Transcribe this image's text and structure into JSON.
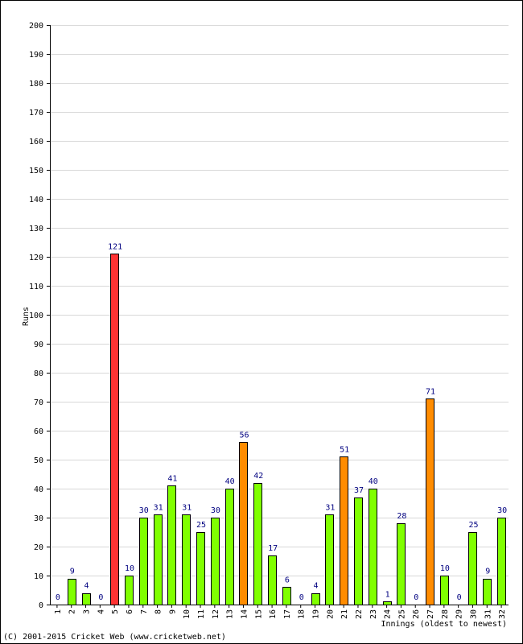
{
  "chart_data": {
    "type": "bar",
    "title": "",
    "xlabel": "Innings (oldest to newest)",
    "ylabel": "Runs",
    "ylim": [
      0,
      200
    ],
    "yticks": [
      0,
      10,
      20,
      30,
      40,
      50,
      60,
      70,
      80,
      90,
      100,
      110,
      120,
      130,
      140,
      150,
      160,
      170,
      180,
      190,
      200
    ],
    "grid": true,
    "categories": [
      "1",
      "2",
      "3",
      "4",
      "5",
      "6",
      "7",
      "8",
      "9",
      "10",
      "11",
      "12",
      "13",
      "14",
      "15",
      "16",
      "17",
      "18",
      "19",
      "20",
      "21",
      "22",
      "23",
      "24",
      "25",
      "26",
      "27",
      "28",
      "29",
      "30",
      "31",
      "32"
    ],
    "values": [
      0,
      9,
      4,
      0,
      121,
      10,
      30,
      31,
      41,
      31,
      25,
      30,
      40,
      56,
      42,
      17,
      6,
      0,
      4,
      31,
      51,
      37,
      40,
      1,
      28,
      0,
      71,
      10,
      0,
      25,
      9,
      30
    ],
    "colors": {
      "under_50": "#80ff00",
      "fifty": "#ff8c00",
      "hundred": "#ff3333",
      "value_label": "#000080",
      "gridline": "#d8d8d8"
    }
  },
  "footer": {
    "copyright": "(C) 2001-2015 Cricket Web (www.cricketweb.net)"
  }
}
